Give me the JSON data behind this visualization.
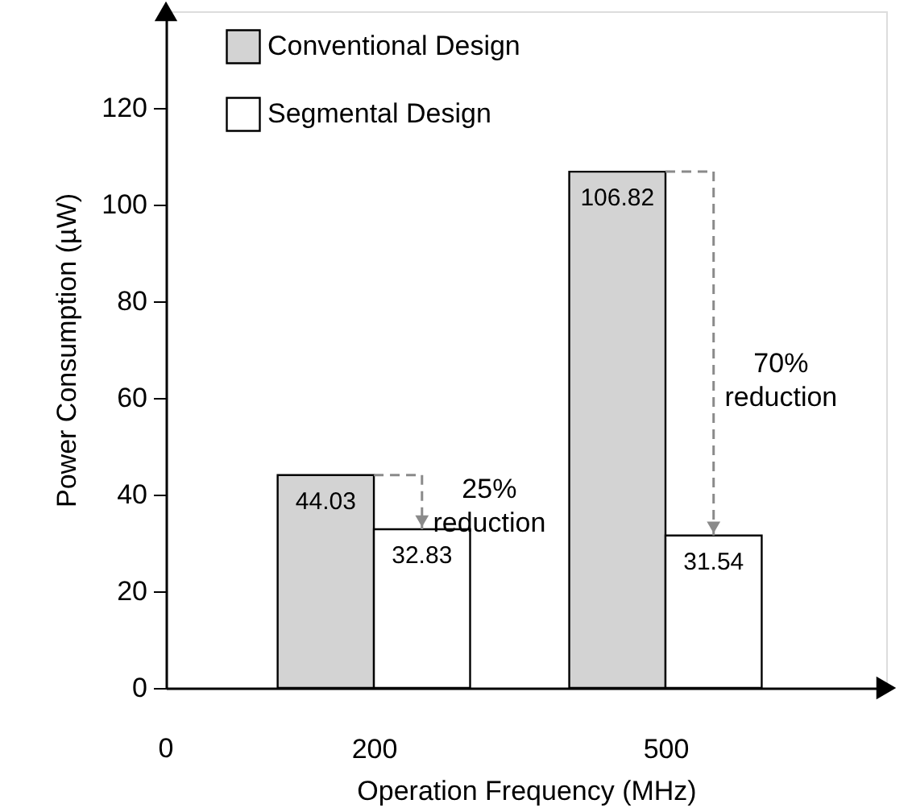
{
  "chart_data": {
    "type": "bar",
    "xlabel": "Operation Frequency (MHz)",
    "ylabel": "Power Consumption (µW)",
    "categories": [
      "200",
      "500"
    ],
    "series": [
      {
        "name": "Conventional Design",
        "color": "#d3d3d3",
        "values": [
          44.03,
          106.82
        ]
      },
      {
        "name": "Segmental Design",
        "color": "#ffffff",
        "values": [
          32.83,
          31.54
        ]
      }
    ],
    "ylim": [
      0,
      140
    ],
    "yticks": [
      0,
      20,
      40,
      60,
      80,
      100,
      120
    ],
    "data_labels": true,
    "legend": "top left",
    "grid": false,
    "annotations": [
      "0",
      {
        "text": "25%\nreduction",
        "x": "200",
        "y": 41
      },
      {
        "text": "70%\nreduction",
        "x": "500",
        "y": 67
      }
    ]
  }
}
